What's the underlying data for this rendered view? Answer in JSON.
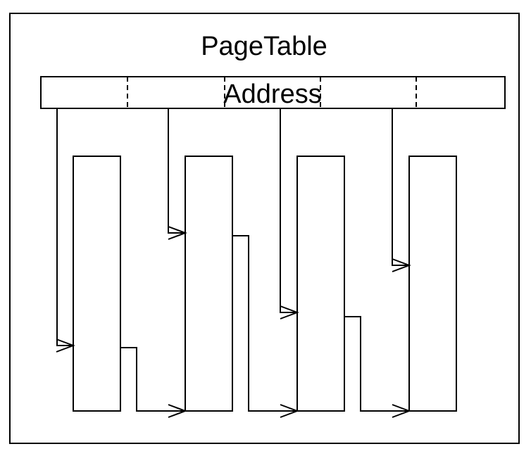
{
  "diagram": {
    "title": "PageTable",
    "address_label": "Address",
    "address_segments": 5,
    "page_count": 4
  },
  "colors": {
    "stroke": "#000000",
    "background": "#ffffff"
  }
}
